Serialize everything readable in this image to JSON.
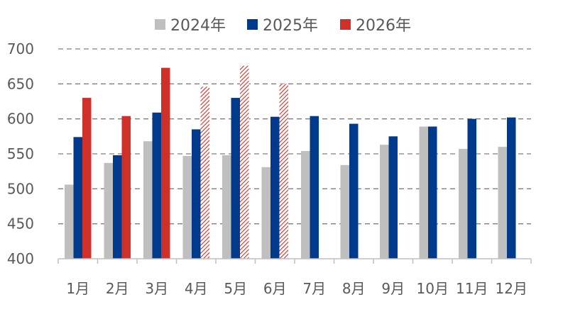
{
  "chart_data": {
    "type": "bar",
    "title": "",
    "xlabel": "",
    "ylabel": "",
    "ylim": [
      400,
      700
    ],
    "yticks": [
      "400",
      "450",
      "500",
      "550",
      "600",
      "650",
      "700"
    ],
    "grid": true,
    "legend_position": "top",
    "categories": [
      "1月",
      "2月",
      "3月",
      "4月",
      "5月",
      "6月",
      "7月",
      "8月",
      "9月",
      "10月",
      "11月",
      "12月"
    ],
    "series": [
      {
        "name": "2024年",
        "color": "#BFBFBF",
        "values": [
          506,
          537,
          568,
          547,
          548,
          531,
          554,
          534,
          563,
          589,
          557,
          560
        ]
      },
      {
        "name": "2025年",
        "color": "#003A8C",
        "values": [
          574,
          548,
          609,
          585,
          630,
          603,
          604,
          593,
          575,
          589,
          600,
          602
        ]
      },
      {
        "name": "2026年",
        "color": "#D0302A",
        "values": [
          630,
          604,
          673,
          646,
          676,
          650,
          null,
          null,
          null,
          null,
          null,
          null
        ],
        "hatched_from_index": 3
      }
    ]
  }
}
